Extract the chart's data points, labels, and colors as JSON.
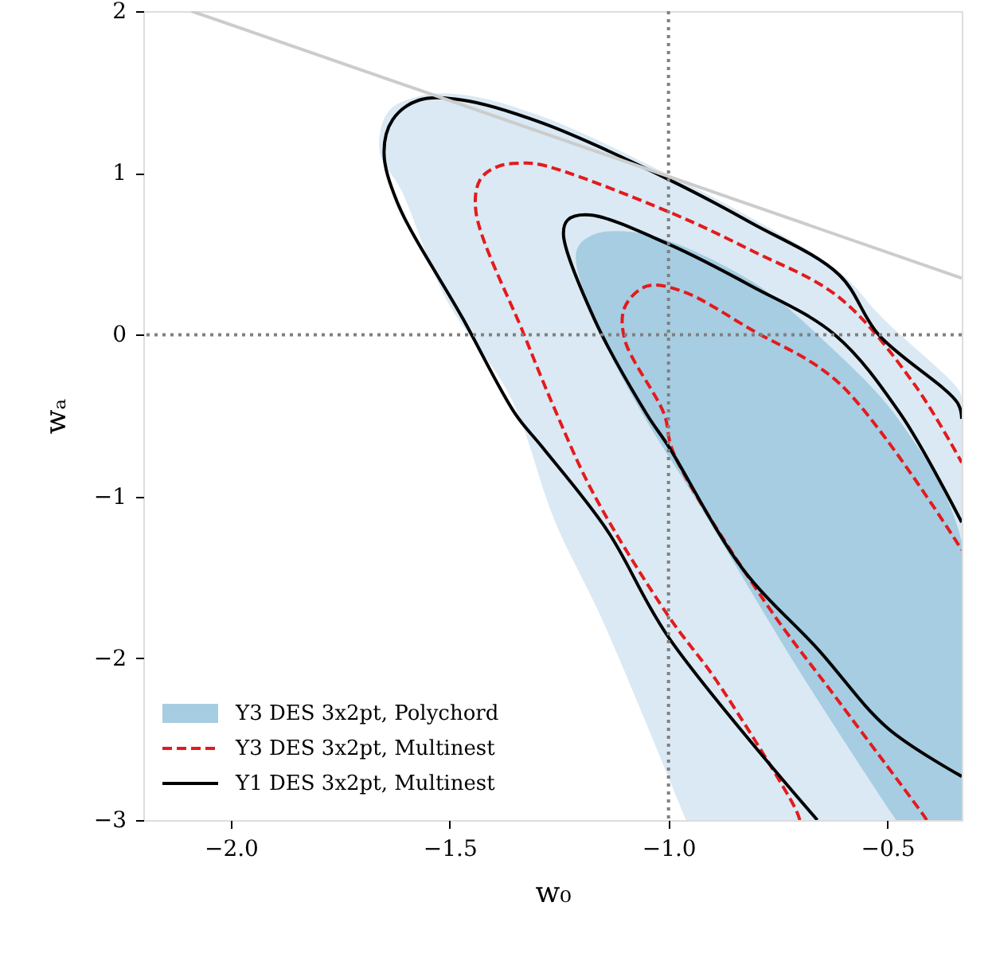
{
  "chart_data": {
    "type": "line",
    "xlabel": "w₀",
    "ylabel": "wₐ",
    "xlim": [
      -2.2,
      -0.33
    ],
    "ylim": [
      -3,
      2
    ],
    "xticks": [
      {
        "value": -2,
        "label": "−2.0"
      },
      {
        "value": -1.5,
        "label": "−1.5"
      },
      {
        "value": -1,
        "label": "−1.0"
      },
      {
        "value": -0.5,
        "label": "−0.5"
      }
    ],
    "yticks": [
      {
        "value": -3,
        "label": "−3"
      },
      {
        "value": -2,
        "label": "−2"
      },
      {
        "value": -1,
        "label": "−1"
      },
      {
        "value": 0,
        "label": "0"
      },
      {
        "value": 1,
        "label": "1"
      },
      {
        "value": 2,
        "label": "2"
      }
    ],
    "grid": false,
    "legend": "bottom left",
    "ref_lines": [
      {
        "axis": "x",
        "value": -1,
        "color": "#808080",
        "line_style": "dotted"
      },
      {
        "axis": "y",
        "value": 0,
        "color": "#808080",
        "line_style": "dotted"
      }
    ],
    "series": [
      {
        "type": "area",
        "color": "#dae9f3",
        "x": [
          -0.96,
          -1.15,
          -1.26,
          -1.36,
          -1.51,
          -1.61,
          -1.66,
          -1.64,
          -1.56,
          -1.46,
          -1.29,
          -1.0,
          -0.81,
          -0.61,
          -0.51,
          -0.34,
          -0.33,
          -0.33
        ],
        "values": [
          -3.0,
          -1.77,
          -1.15,
          -0.39,
          0.23,
          0.89,
          1.13,
          1.38,
          1.48,
          1.48,
          1.35,
          0.99,
          0.72,
          0.39,
          0.1,
          -0.33,
          -0.39,
          -3.0
        ]
      },
      {
        "type": "area",
        "name": "Y3 DES 3x2pt, Polychord",
        "color": "#a6cde2",
        "x": [
          -0.48,
          -0.49,
          -0.71,
          -0.93,
          -1.07,
          -1.17,
          -1.21,
          -1.17,
          -1.05,
          -0.81,
          -0.64,
          -0.47,
          -0.33,
          -0.33
        ],
        "values": [
          -3.0,
          -2.96,
          -2.04,
          -1.05,
          -0.44,
          0.1,
          0.52,
          0.62,
          0.62,
          0.33,
          -0.05,
          -0.54,
          -1.28,
          -3.0
        ]
      },
      {
        "name": "Y3 DES 3x2pt, Multinest",
        "color": "#e41a1c",
        "line_style": "dashed",
        "x": [
          -0.7,
          -0.71,
          -0.89,
          -1.0,
          -1.17,
          -1.26,
          -1.33,
          -1.44,
          -1.43,
          -1.39,
          -1.34,
          -1.29,
          -1.0,
          -0.81,
          -0.61,
          -0.44,
          -0.33
        ],
        "values": [
          -3.0,
          -2.93,
          -2.14,
          -1.74,
          -0.99,
          -0.46,
          0.0,
          0.76,
          0.96,
          1.04,
          1.06,
          1.05,
          0.76,
          0.52,
          0.23,
          -0.3,
          -0.79
        ]
      },
      {
        "color": "#e41a1c",
        "line_style": "dashed",
        "x": [
          -0.41,
          -0.42,
          -0.61,
          -0.78,
          -0.99,
          -1.01,
          -1.1,
          -1.1,
          -1.05,
          -0.97,
          -0.81,
          -0.61,
          -0.33
        ],
        "values": [
          -3.0,
          -2.96,
          -2.27,
          -1.65,
          -0.72,
          -0.49,
          -0.03,
          0.17,
          0.3,
          0.27,
          0.03,
          -0.3,
          -1.33
        ]
      },
      {
        "name": "Y1 DES 3x2pt, Multinest",
        "color": "#000000",
        "line_style": "solid",
        "x": [
          -0.66,
          -1.0,
          -1.14,
          -1.29,
          -1.35,
          -1.47,
          -1.62,
          -1.65,
          -1.63,
          -1.57,
          -1.47,
          -1.29,
          -1.0,
          -0.81,
          -0.61,
          -0.52,
          -0.34,
          -0.33
        ],
        "values": [
          -3.0,
          -1.87,
          -1.21,
          -0.69,
          -0.49,
          0.1,
          0.82,
          1.13,
          1.33,
          1.45,
          1.45,
          1.31,
          0.96,
          0.69,
          0.37,
          0.0,
          -0.42,
          -0.52
        ]
      },
      {
        "color": "#000000",
        "line_style": "solid",
        "x": [
          -0.33,
          -0.5,
          -0.66,
          -0.83,
          -1.0,
          -1.05,
          -1.17,
          -1.24,
          -1.23,
          -1.18,
          -1.0,
          -0.81,
          -0.62,
          -0.47,
          -0.33
        ],
        "values": [
          -2.73,
          -2.43,
          -1.94,
          -1.45,
          -0.69,
          -0.49,
          0.1,
          0.62,
          0.71,
          0.74,
          0.56,
          0.3,
          0.0,
          -0.49,
          -1.16
        ]
      },
      {
        "color": "#cccccc",
        "line_style": "solid",
        "x": [
          -2.09,
          -0.33
        ],
        "values": [
          2.0,
          0.35
        ]
      }
    ]
  }
}
